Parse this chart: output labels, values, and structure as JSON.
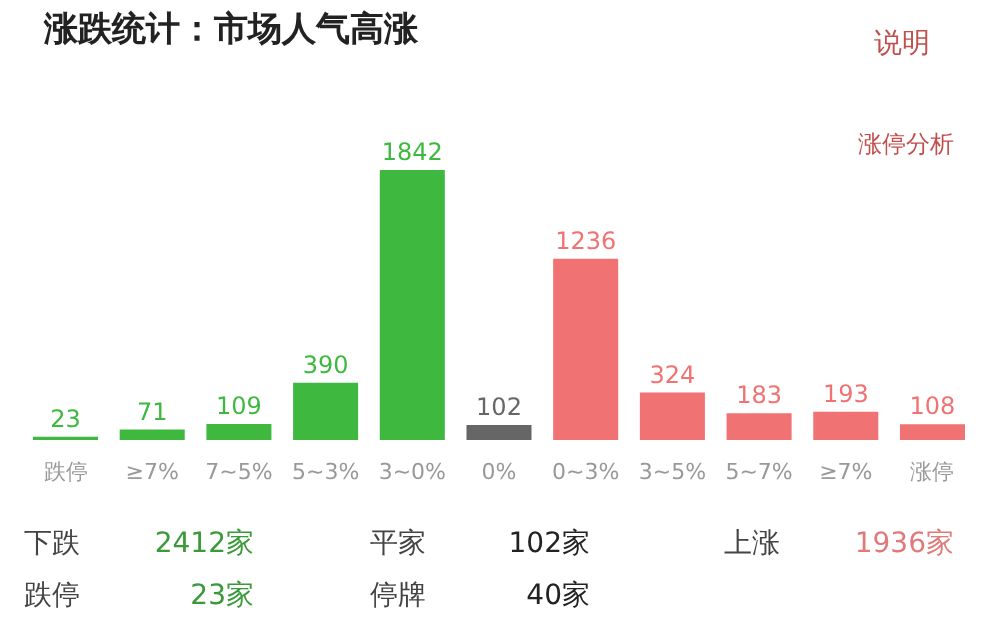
{
  "chart_data": {
    "type": "bar",
    "title": "涨跌统计：市场人气高涨",
    "categories": [
      "跌停",
      "≥7%",
      "7~5%",
      "5~3%",
      "3~0%",
      "0%",
      "0~3%",
      "3~5%",
      "5~7%",
      "≥7%",
      "涨停"
    ],
    "values": [
      23,
      71,
      109,
      390,
      1842,
      102,
      1236,
      324,
      183,
      193,
      108
    ],
    "colors": [
      "#3fb83f",
      "#3fb83f",
      "#3fb83f",
      "#3fb83f",
      "#3fb83f",
      "#666666",
      "#f07272",
      "#f07272",
      "#f07272",
      "#f07272",
      "#f07272"
    ],
    "data_labels": true,
    "grid": false,
    "annotations": [
      "说明",
      "涨停分析",
      "下跌",
      "2412家",
      "平家",
      "102家",
      "上涨",
      "1936家",
      "跌停",
      "23家",
      "停牌",
      "40家"
    ]
  }
}
